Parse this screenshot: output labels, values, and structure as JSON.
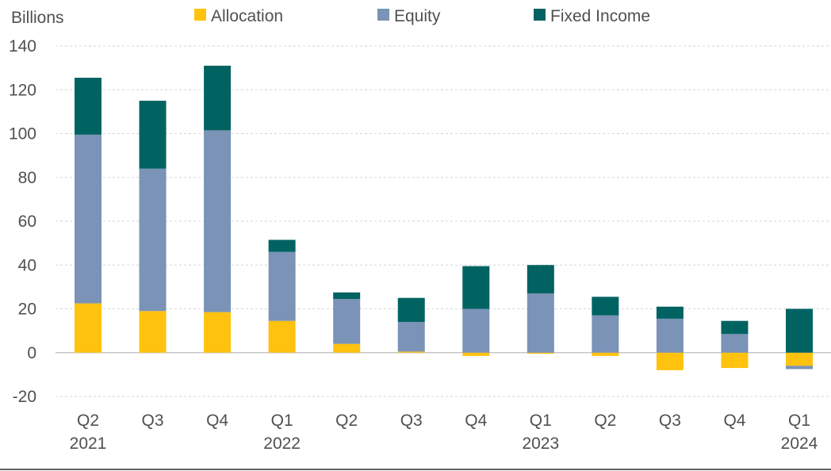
{
  "chart_data": {
    "type": "bar",
    "stacked": true,
    "ylabel": "Billions",
    "ylim": [
      -20,
      140
    ],
    "yticks": [
      140,
      120,
      100,
      80,
      60,
      40,
      20,
      0,
      -20
    ],
    "grid": true,
    "legend_position": "top",
    "categories": [
      {
        "line1": "Q2",
        "line2": "2021"
      },
      {
        "line1": "Q3",
        "line2": ""
      },
      {
        "line1": "Q4",
        "line2": ""
      },
      {
        "line1": "Q1",
        "line2": "2022"
      },
      {
        "line1": "Q2",
        "line2": ""
      },
      {
        "line1": "Q3",
        "line2": ""
      },
      {
        "line1": "Q4",
        "line2": ""
      },
      {
        "line1": "Q1",
        "line2": "2023"
      },
      {
        "line1": "Q2",
        "line2": ""
      },
      {
        "line1": "Q3",
        "line2": ""
      },
      {
        "line1": "Q4",
        "line2": ""
      },
      {
        "line1": "Q1",
        "line2": "2024"
      }
    ],
    "series": [
      {
        "name": "Allocation",
        "color": "#ffc20e",
        "values": [
          22.5,
          19,
          18.5,
          14.5,
          4,
          0.5,
          -1.5,
          -0.5,
          -1.5,
          -8,
          -7,
          -6
        ]
      },
      {
        "name": "Equity",
        "color": "#7a93b6",
        "values": [
          77,
          65,
          83,
          31.5,
          20.5,
          13.5,
          20,
          27,
          17,
          15.5,
          8.5,
          -1.5
        ]
      },
      {
        "name": "Fixed Income",
        "color": "#006362",
        "values": [
          26,
          31,
          29.5,
          5.5,
          3,
          11,
          19.5,
          13,
          8.5,
          5.5,
          6,
          20
        ]
      }
    ]
  }
}
